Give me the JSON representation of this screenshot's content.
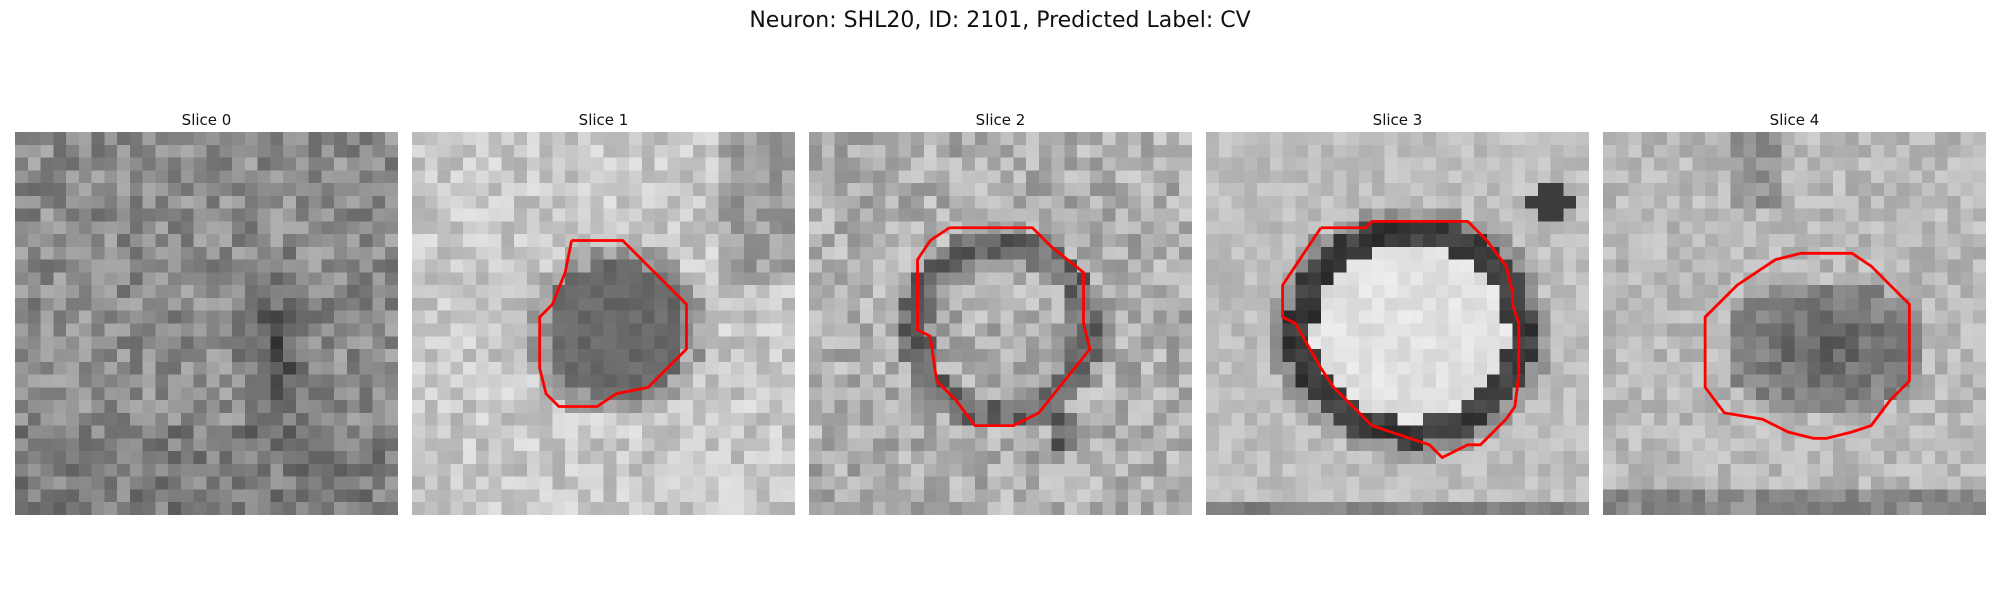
{
  "figure": {
    "title": "Neuron: SHL20, ID: 2101, Predicted Label: CV"
  },
  "panels": [
    {
      "title": "Slice 0",
      "has_contour": false,
      "pattern": "diffuse-dark-blob-right",
      "seed": 11
    },
    {
      "title": "Slice 1",
      "has_contour": true,
      "pattern": "dark-dense-blob-center",
      "seed": 23
    },
    {
      "title": "Slice 2",
      "has_contour": true,
      "pattern": "speckled-ring",
      "seed": 37
    },
    {
      "title": "Slice 3",
      "has_contour": true,
      "pattern": "thick-dark-ring-bright-center",
      "seed": 51
    },
    {
      "title": "Slice 4",
      "has_contour": true,
      "pattern": "dark-blob-lower-center",
      "seed": 67
    }
  ],
  "colors": {
    "contour": "#ff0000",
    "background": "#ffffff"
  }
}
